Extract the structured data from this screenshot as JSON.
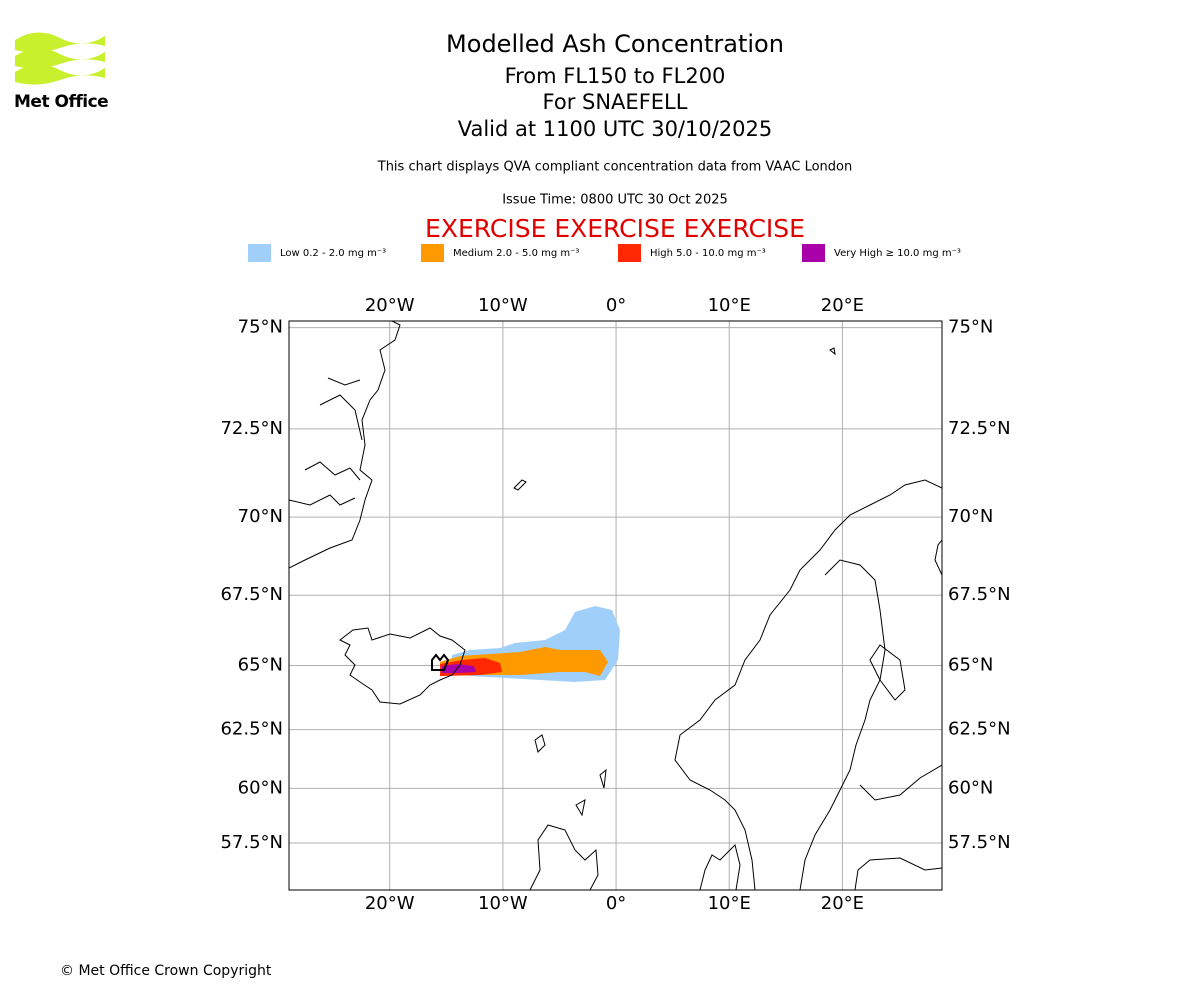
{
  "logo": {
    "text": "Met Office"
  },
  "header": {
    "title": "Modelled Ash Concentration",
    "levels": "From FL150 to FL200",
    "volcano": "For SNAEFELL",
    "valid": "Valid at 1100 UTC 30/10/2025",
    "description": "This chart displays QVA compliant concentration data from VAAC London",
    "issue": "Issue Time: 0800 UTC 30 Oct 2025",
    "exercise": "EXERCISE EXERCISE EXERCISE"
  },
  "legend": [
    {
      "label": "Low 0.2 - 2.0 mg m⁻³",
      "color": "#a0d0fa"
    },
    {
      "label": "Medium 2.0 - 5.0 mg m⁻³",
      "color": "#ff9900"
    },
    {
      "label": "High 5.0 - 10.0 mg m⁻³",
      "color": "#ff2800"
    },
    {
      "label": "Very High ≥ 10.0 mg m⁻³",
      "color": "#aa00aa"
    }
  ],
  "map": {
    "lon_range": [
      -28.9,
      28.8
    ],
    "lat_range": [
      55.2,
      75.15
    ],
    "lon_ticks": [
      {
        "value": -20,
        "label": "20°W"
      },
      {
        "value": -10,
        "label": "10°W"
      },
      {
        "value": 0,
        "label": "0°"
      },
      {
        "value": 10,
        "label": "10°E"
      },
      {
        "value": 20,
        "label": "20°E"
      }
    ],
    "lat_ticks": [
      {
        "value": 75,
        "label": "75°N"
      },
      {
        "value": 72.5,
        "label": "72.5°N"
      },
      {
        "value": 70,
        "label": "70°N"
      },
      {
        "value": 67.5,
        "label": "67.5°N"
      },
      {
        "value": 65,
        "label": "65°N"
      },
      {
        "value": 62.5,
        "label": "62.5°N"
      },
      {
        "value": 60,
        "label": "60°N"
      },
      {
        "value": 57.5,
        "label": "57.5°N"
      }
    ]
  },
  "footer": {
    "copyright": "© Met Office Crown Copyright"
  }
}
